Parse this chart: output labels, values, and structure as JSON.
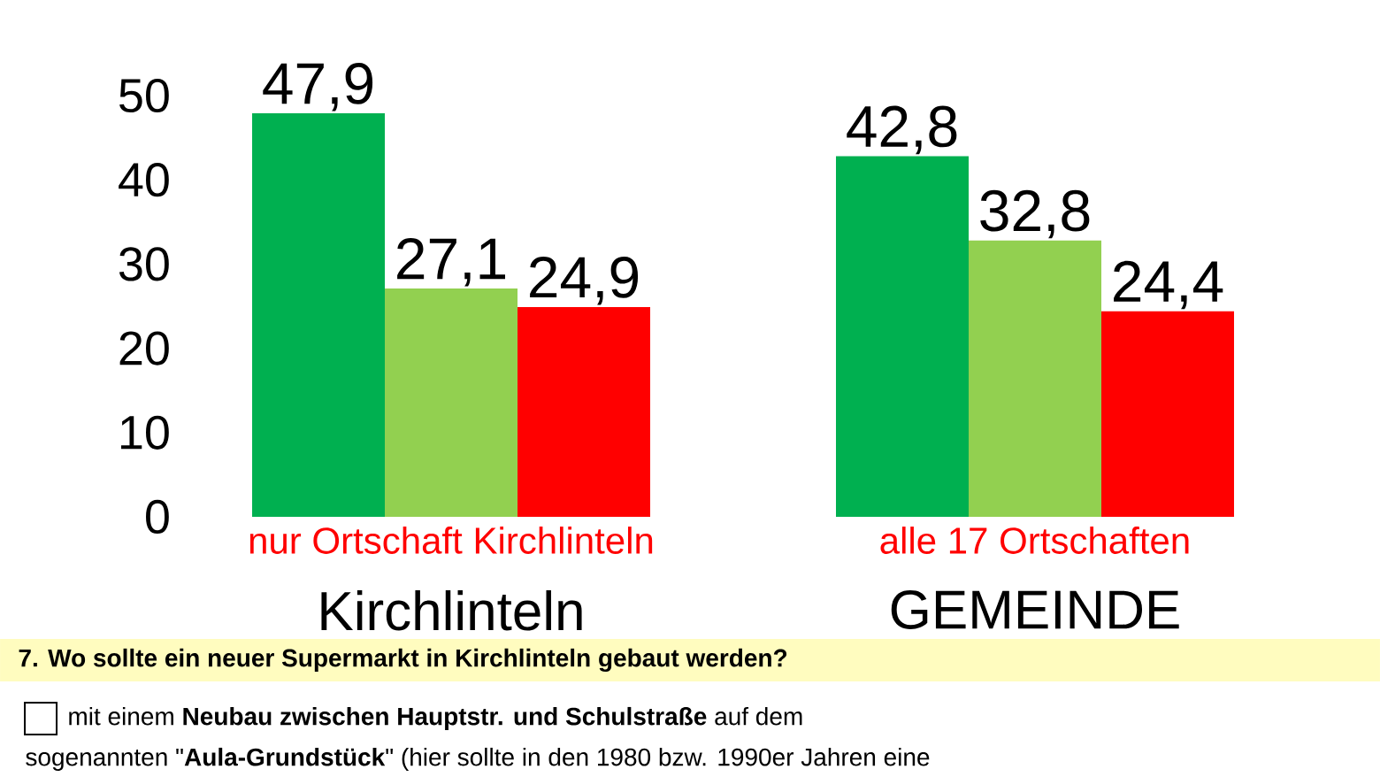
{
  "chart_data": {
    "type": "bar",
    "categories": [
      "nur Ortschaft Kirchlinteln",
      "alle 17 Ortschaften"
    ],
    "series": [
      {
        "color": "#00b050",
        "values": [
          47.9,
          42.8
        ],
        "value_labels": [
          "47,9",
          "42,8"
        ]
      },
      {
        "color": "#92d050",
        "values": [
          27.1,
          32.8
        ],
        "value_labels": [
          "27,1",
          "32,8"
        ]
      },
      {
        "color": "#ff0000",
        "values": [
          24.9,
          24.4
        ],
        "value_labels": [
          "24,9",
          "24,4"
        ]
      }
    ],
    "ylim": [
      0,
      50
    ],
    "yticks": [
      0,
      10,
      20,
      30,
      40,
      50
    ],
    "grid": false,
    "annotations": [
      "Kirchlinteln",
      "GEMEINDE",
      "**7. Wo sollte ein neuer Supermarkt in Kirchlinteln gebaut werden?**",
      "mit einem **Neubau zwischen Hauptstr. und Schulstraße** auf dem",
      "sogenannten \"**Aula-Grundstück**\" (hier sollte in den 1980 bzw. 1990er Jahren eine"
    ]
  }
}
